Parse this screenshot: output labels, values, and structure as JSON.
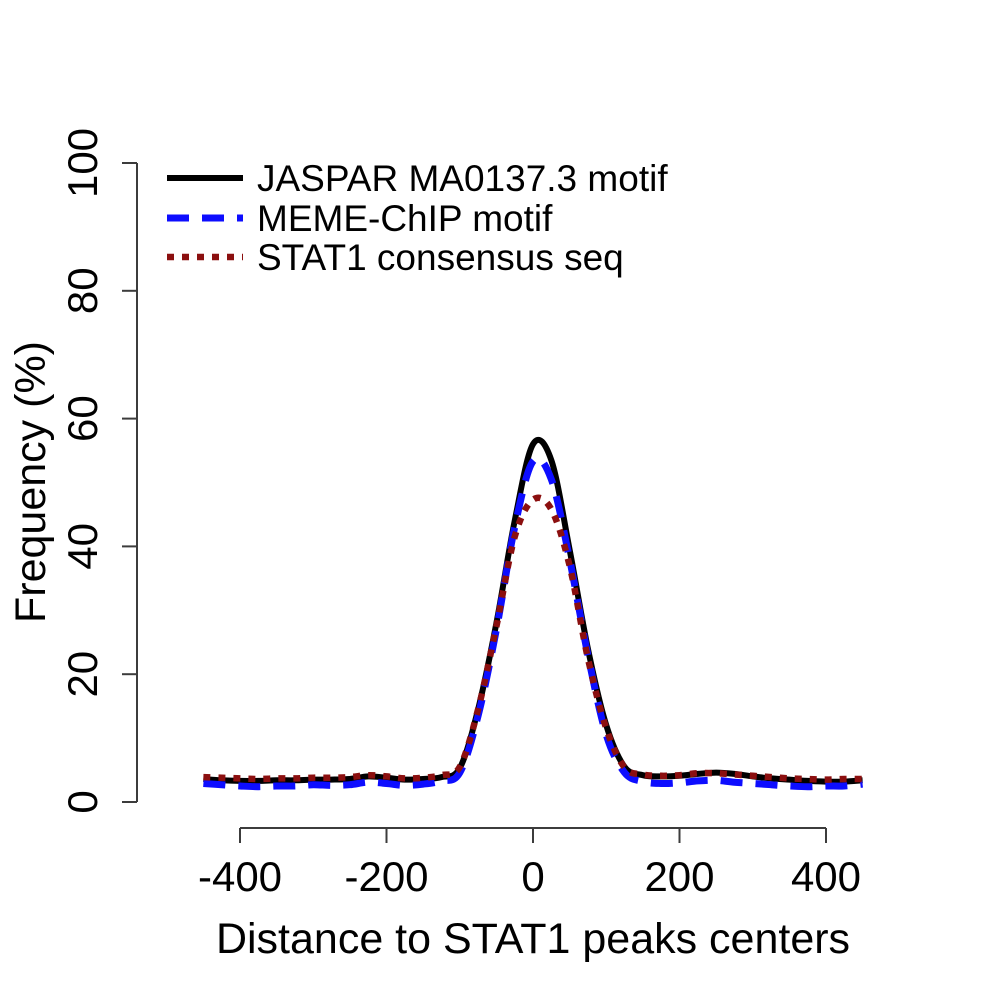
{
  "figure": {
    "background": "#ffffff",
    "axis_color": "#3c3c3c",
    "text_color": "#000000"
  },
  "axes": {
    "x_title": "Distance to STAT1 peaks centers",
    "y_title": "Frequency (%)",
    "x_ticks": [
      {
        "value": -400,
        "label": "-400"
      },
      {
        "value": -200,
        "label": "-200"
      },
      {
        "value": 0,
        "label": "0"
      },
      {
        "value": 200,
        "label": "200"
      },
      {
        "value": 400,
        "label": "400"
      }
    ],
    "y_ticks": [
      {
        "value": 0,
        "label": "0"
      },
      {
        "value": 20,
        "label": "20"
      },
      {
        "value": 40,
        "label": "40"
      },
      {
        "value": 60,
        "label": "60"
      },
      {
        "value": 80,
        "label": "80"
      },
      {
        "value": 100,
        "label": "100"
      }
    ]
  },
  "legend": {
    "position": "topleft",
    "items": [
      {
        "label": "JASPAR MA0137.3 motif",
        "color": "#000000",
        "style": "solid"
      },
      {
        "label": "MEME-ChIP motif",
        "color": "#0d0dff",
        "style": "dashed"
      },
      {
        "label": "STAT1 consensus seq",
        "color": "#8b0f0f",
        "style": "dotted"
      }
    ]
  },
  "chart_data": {
    "type": "line",
    "title": "",
    "xlabel": "Distance to STAT1 peaks centers",
    "ylabel": "Frequency (%)",
    "xlim": [
      -450,
      450
    ],
    "ylim": [
      0,
      100
    ],
    "grid": false,
    "legend_position": "topleft",
    "x": [
      -450,
      -425,
      -400,
      -375,
      -350,
      -325,
      -300,
      -275,
      -250,
      -225,
      -200,
      -175,
      -150,
      -125,
      -100,
      -75,
      -50,
      -25,
      0,
      25,
      50,
      75,
      100,
      125,
      150,
      175,
      200,
      225,
      250,
      275,
      300,
      325,
      350,
      375,
      400,
      425,
      450
    ],
    "series": [
      {
        "name": "JASPAR MA0137.3 motif",
        "color": "#000000",
        "style": "solid",
        "stroke_width": 6,
        "values": [
          3.6,
          3.4,
          3.3,
          3.3,
          3.4,
          3.4,
          3.5,
          3.5,
          3.6,
          4.0,
          3.8,
          3.5,
          3.6,
          3.9,
          5.3,
          14.5,
          28.0,
          44.0,
          56.0,
          53.5,
          39.5,
          24.0,
          12.0,
          5.5,
          4.2,
          4.0,
          4.1,
          4.4,
          4.6,
          4.4,
          4.0,
          3.7,
          3.5,
          3.3,
          3.2,
          3.2,
          3.4
        ]
      },
      {
        "name": "MEME-ChIP motif",
        "color": "#0d0dff",
        "style": "dashed",
        "stroke_width": 7,
        "values": [
          2.9,
          2.7,
          2.5,
          2.4,
          2.5,
          2.5,
          2.7,
          2.6,
          2.7,
          3.1,
          2.9,
          2.6,
          2.8,
          3.3,
          4.6,
          13.5,
          27.0,
          43.0,
          53.3,
          50.5,
          38.0,
          23.0,
          10.5,
          4.6,
          3.2,
          2.9,
          3.0,
          3.3,
          3.4,
          3.1,
          2.9,
          2.7,
          2.5,
          2.4,
          2.5,
          2.5,
          2.8
        ]
      },
      {
        "name": "STAT1 consensus seq",
        "color": "#8b0f0f",
        "style": "dotted",
        "stroke_width": 6.5,
        "values": [
          3.9,
          3.8,
          3.7,
          3.6,
          3.7,
          3.7,
          3.8,
          3.8,
          3.9,
          4.2,
          4.0,
          3.7,
          3.8,
          4.2,
          5.5,
          14.5,
          27.5,
          41.5,
          47.3,
          45.8,
          37.0,
          22.5,
          11.5,
          5.4,
          4.3,
          4.1,
          4.2,
          4.5,
          4.5,
          4.3,
          4.1,
          3.9,
          3.7,
          3.6,
          3.5,
          3.6,
          3.6
        ]
      }
    ]
  }
}
